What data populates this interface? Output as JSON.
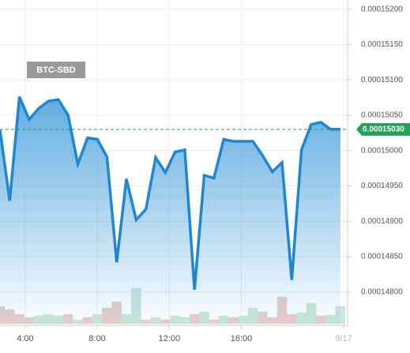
{
  "chart_data": {
    "type": "line",
    "pair": "BTC-SBD",
    "x": [
      2.6,
      3.14,
      3.68,
      4.22,
      4.76,
      5.3,
      5.84,
      6.38,
      6.92,
      7.46,
      8,
      8.54,
      9.08,
      9.62,
      10.16,
      10.7,
      11.24,
      11.78,
      12.32,
      12.86,
      13.4,
      13.94,
      14.48,
      15.02,
      15.56,
      16.1,
      16.64,
      17.18,
      17.72,
      18.26,
      18.8,
      19.34,
      19.88,
      20.42,
      20.96,
      21.5
    ],
    "series": [
      {
        "name": "BTC-SBD",
        "color": "#1f86d4",
        "values": [
          0.00015029,
          0.00014929,
          0.00015076,
          0.00015044,
          0.0001506,
          0.0001507,
          0.00015072,
          0.0001505,
          0.00014981,
          0.00015018,
          0.00015016,
          0.00014991,
          0.00014842,
          0.0001496,
          0.00014902,
          0.00014917,
          0.0001499,
          0.00014969,
          0.00014998,
          0.00015001,
          0.00014803,
          0.00014965,
          0.00014961,
          0.00015016,
          0.00015013,
          0.00015013,
          0.00015013,
          0.00014993,
          0.0001497,
          0.00014983,
          0.00014817,
          0.00015001,
          0.00015037,
          0.0001504,
          0.0001503,
          0.0001503
        ]
      }
    ],
    "volume": {
      "values": [
        22,
        18,
        12,
        8,
        10,
        12,
        10,
        12,
        5,
        8,
        12,
        20,
        28,
        12,
        45,
        5,
        8,
        5,
        10,
        8,
        12,
        15,
        5,
        10,
        8,
        10,
        20,
        15,
        8,
        34,
        12,
        14,
        26,
        10,
        11,
        22
      ],
      "colors": [
        "#e8cccc",
        "#e8cccc",
        "#e8cccc",
        "#e8cccc",
        "#c8e8d8",
        "#c8e8d8",
        "#c8e8d8",
        "#e8cccc",
        "#c8e8d8",
        "#e8cccc",
        "#c8e8d8",
        "#e8cccc",
        "#e8cccc",
        "#c8e8d8",
        "#c8e8d8",
        "#e8cccc",
        "#c8e8d8",
        "#e8cccc",
        "#c8e8d8",
        "#c8e8d8",
        "#e8cccc",
        "#c8e8d8",
        "#e8cccc",
        "#c8e8d8",
        "#e8cccc",
        "#c8e8d8",
        "#c8e8d8",
        "#e8cccc",
        "#e8cccc",
        "#e8cccc",
        "#e8cccc",
        "#c8e8d8",
        "#c8e8d8",
        "#e8cccc",
        "#c8e8d8",
        "#c8e8d8"
      ],
      "vlim": [
        0,
        100
      ]
    },
    "current": {
      "value": 0.0001503,
      "label": "0.00015030"
    },
    "xlim": [
      2.6,
      21.9
    ],
    "xticks": [
      {
        "value": 4,
        "label": "4:00"
      },
      {
        "value": 8,
        "label": "8:00"
      },
      {
        "value": 12,
        "label": "12:00"
      },
      {
        "value": 16,
        "label": "16:00"
      },
      {
        "value": 21.68,
        "label": "9/17"
      }
    ],
    "ylim": [
      0.00014755,
      0.00015213
    ],
    "yticks": [
      {
        "value": 0.000152,
        "label": "0.00015200"
      },
      {
        "value": 0.0001515,
        "label": "0.00015150"
      },
      {
        "value": 0.000151,
        "label": "0.00015100"
      },
      {
        "value": 0.0001505,
        "label": "0.00015050"
      },
      {
        "value": 0.00015,
        "label": "0.00015000"
      },
      {
        "value": 0.0001495,
        "label": "0.00014950"
      },
      {
        "value": 0.000149,
        "label": "0.00014900"
      },
      {
        "value": 0.0001485,
        "label": "0.00014850"
      },
      {
        "value": 0.000148,
        "label": "0.00014800"
      }
    ],
    "grid": true
  }
}
